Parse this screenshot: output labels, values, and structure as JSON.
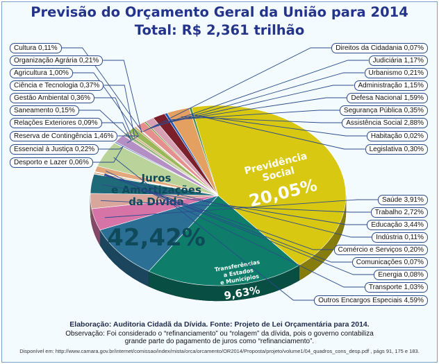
{
  "chart_data": {
    "type": "pie",
    "title": "Previsão do Orçamento Geral da União para 2014",
    "subtitle": "Total: R$ 2,361 trilhão",
    "slices": [
      {
        "label": "Juros e Amortizações da Dívida",
        "label_lines": [
          "Juros",
          "e Amortizações",
          "da Dívida"
        ],
        "text": "42,42%",
        "value": 42.42,
        "color": "#d8c811",
        "side": "big"
      },
      {
        "label": "Previdência Social",
        "label_lines": [
          "Previdência",
          "Social"
        ],
        "text": "20,05%",
        "value": 20.05,
        "color": "#0e7e6a",
        "side": "big"
      },
      {
        "label": "Transferências a Estados e Municípios",
        "label_lines": [
          "Transferências",
          "a Estados",
          "e Municípios"
        ],
        "text": "9,63%",
        "value": 9.63,
        "color": "#2b6f95",
        "side": "big"
      },
      {
        "label": "Saúde",
        "text": "Saúde 3,91%",
        "value": 3.91,
        "color": "#d674a8",
        "side": "right"
      },
      {
        "label": "Trabalho",
        "text": "Trabalho 2,72%",
        "value": 2.72,
        "color": "#d9a69c",
        "side": "right"
      },
      {
        "label": "Educação",
        "text": "Educação 3,44%",
        "value": 3.44,
        "color": "#1e6a78",
        "side": "right"
      },
      {
        "label": "Indústria",
        "text": "Indústria 0,11%",
        "value": 0.11,
        "color": "#7a5c8c",
        "side": "right"
      },
      {
        "label": "Comércio e Serviços",
        "text": "Comércio e Serviços 0,20%",
        "value": 0.2,
        "color": "#c77d3f",
        "side": "right"
      },
      {
        "label": "Comunicações",
        "text": "Comunicações 0,07%",
        "value": 0.07,
        "color": "#5c8a3c",
        "side": "right"
      },
      {
        "label": "Energia",
        "text": "Energia 0,08%",
        "value": 0.08,
        "color": "#a05050",
        "side": "right"
      },
      {
        "label": "Transporte",
        "text": "Transporte 1,03%",
        "value": 1.03,
        "color": "#e2a77a",
        "side": "right"
      },
      {
        "label": "Outros Encargos Especiais",
        "text": "Outros Encargos Especiais 4,59%",
        "value": 4.59,
        "color": "#b9d39a",
        "side": "right"
      },
      {
        "label": "Desporto e Lazer",
        "text": "Desporto e Lazer 0,06%",
        "value": 0.06,
        "color": "#8e6bb0",
        "side": "left"
      },
      {
        "label": "Essencial à Justiça",
        "text": "Essencial à Justiça 0,22%",
        "value": 0.22,
        "color": "#6f8cc4",
        "side": "left"
      },
      {
        "label": "Reserva de Contingência",
        "text": "Reserva de Contingência 1,46%",
        "value": 1.46,
        "color": "#b48fc4",
        "side": "left"
      },
      {
        "label": "Relações Exteriores",
        "text": "Relações Exteriores 0,09%",
        "value": 0.09,
        "color": "#5fa0c8",
        "side": "left"
      },
      {
        "label": "Saneamento",
        "text": "Saneamento 0,15%",
        "value": 0.15,
        "color": "#9c6b3c",
        "side": "left"
      },
      {
        "label": "Gestão Ambiental",
        "text": "Gestão Ambiental 0,36%",
        "value": 0.36,
        "color": "#7fb06a",
        "side": "left"
      },
      {
        "label": "Ciência e Tecnologia",
        "text": "Ciência e Tecnologia 0,37%",
        "value": 0.37,
        "color": "#d2b48c",
        "side": "left"
      },
      {
        "label": "Agricultura",
        "text": "Agricultura 1,00%",
        "value": 1.0,
        "color": "#9ab85a",
        "side": "left"
      },
      {
        "label": "Organização Agrária",
        "text": "Organização Agrária 0,21%",
        "value": 0.21,
        "color": "#c9884a",
        "side": "left"
      },
      {
        "label": "Cultura",
        "text": "Cultura 0,11%",
        "value": 0.11,
        "color": "#a7c7e7",
        "side": "left"
      },
      {
        "label": "Direitos da Cidadania",
        "text": "Direitos da Cidadania 0,07%",
        "value": 0.07,
        "color": "#c45050",
        "side": "right"
      },
      {
        "label": "Judiciária",
        "text": "Judiciária 1,17%",
        "value": 1.17,
        "color": "#e58f8f",
        "side": "right"
      },
      {
        "label": "Urbanismo",
        "text": "Urbanismo 0,21%",
        "value": 0.21,
        "color": "#6b8e23",
        "side": "right"
      },
      {
        "label": "Administração",
        "text": "Administração 1,15%",
        "value": 1.15,
        "color": "#d8a0b4",
        "side": "right"
      },
      {
        "label": "Defesa Nacional",
        "text": "Defesa Nacional 1,59%",
        "value": 1.59,
        "color": "#7b1f2a",
        "side": "right"
      },
      {
        "label": "Segurança Pública",
        "text": "Segurança Pública 0,35%",
        "value": 0.35,
        "color": "#1f56b0",
        "side": "right"
      },
      {
        "label": "Assistência Social",
        "text": "Assistência Social 2,88%",
        "value": 2.88,
        "color": "#e4a060",
        "side": "right"
      },
      {
        "label": "Habitação",
        "text": "Habitação 0,02%",
        "value": 0.02,
        "color": "#444444",
        "side": "right"
      },
      {
        "label": "Legislativa",
        "text": "Legislativa 0,30%",
        "value": 0.3,
        "color": "#4c8c4a",
        "side": "right"
      }
    ]
  },
  "footer": {
    "line1": "Elaboração: Auditoria Cidadã da Dívida. Fonte: Projeto de Lei Orçamentária para 2014.",
    "line2": "Observação:  Foi considerado o “refinanciamento” ou “rolagem” da dívida, pois o governo contabiliza",
    "line3": "grande parte do pagamento de juros como “refinanciamento”.",
    "line4": "Disponível em: http://www.camara.gov.br/internet/comissao/index/mista/orca/orcamento/OR2014/Proposta/projeto/volume1/04_quadros_cons_desp.pdf , págs 91, 175 e 183."
  }
}
